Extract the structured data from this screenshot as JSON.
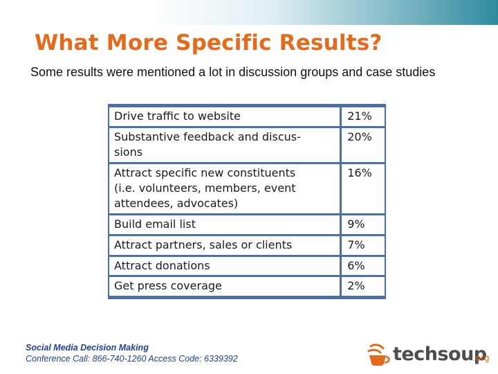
{
  "slide": {
    "title": "What More Specific Results?",
    "subtitle": "Some results were mentioned a lot in discussion groups and case studies"
  },
  "table": {
    "rows": [
      {
        "label": "Drive traffic to website",
        "value": "21%"
      },
      {
        "label": "Substantive feedback and discus-\nsions",
        "value": "20%"
      },
      {
        "label": "Attract specific new constituents\n(i.e. volunteers, members, event\nattendees, advocates)",
        "value": "16%"
      },
      {
        "label": "Build email list",
        "value": "9%"
      },
      {
        "label": "Attract partners, sales or clients",
        "value": "7%"
      },
      {
        "label": "Attract donations",
        "value": "6%"
      },
      {
        "label": "Get press coverage",
        "value": "2%"
      }
    ]
  },
  "footer": {
    "line1": "Social Media Decision Making",
    "line2": "Conference Call: 866-740-1260 Access Code: 6339392"
  },
  "logo": {
    "word": "techsoup",
    "suffix": ".org",
    "icon": "cup-icon",
    "accent_color": "#e56a1c"
  }
}
